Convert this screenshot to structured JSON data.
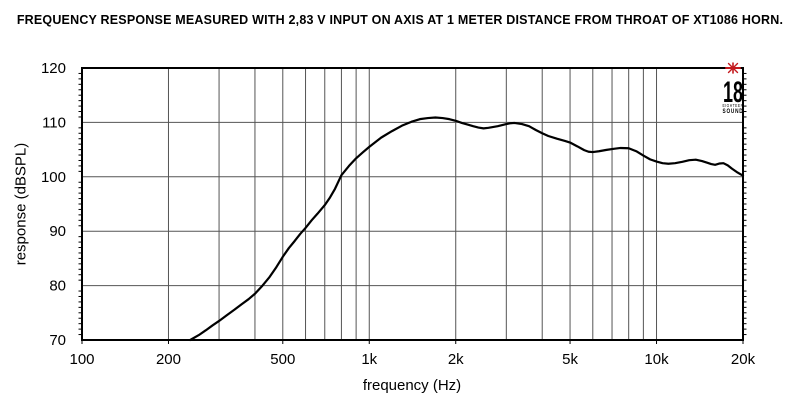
{
  "title": "FREQUENCY RESPONSE MEASURED WITH 2,83 V INPUT ON AXIS AT 1 METER DISTANCE FROM THROAT OF XT1086 HORN.",
  "logo": {
    "icon": "star-burst-icon",
    "star_color": "#c41a1f",
    "number": "18",
    "line1": "EIGHTEEN",
    "line2": "SOUND"
  },
  "colors": {
    "curve": "#000000",
    "grid": "#555555",
    "border": "#000000",
    "background": "#ffffff",
    "accent_red": "#c41a1f"
  },
  "chart_data": {
    "type": "line",
    "title": "FREQUENCY RESPONSE MEASURED WITH 2,83 V INPUT ON AXIS AT 1 METER DISTANCE FROM THROAT OF XT1086 HORN.",
    "xlabel": "frequency (Hz)",
    "ylabel": "response (dBSPL)",
    "x_scale": "log",
    "xlim": [
      100,
      20000
    ],
    "ylim": [
      70,
      120
    ],
    "grid": true,
    "legend": "none",
    "x_tick_labels": [
      {
        "label": "100",
        "value": 100
      },
      {
        "label": "200",
        "value": 200
      },
      {
        "label": "500",
        "value": 500
      },
      {
        "label": "1k",
        "value": 1000
      },
      {
        "label": "2k",
        "value": 2000
      },
      {
        "label": "5k",
        "value": 5000
      },
      {
        "label": "10k",
        "value": 10000
      },
      {
        "label": "20k",
        "value": 20000
      }
    ],
    "x_gridlines": [
      200,
      300,
      400,
      500,
      600,
      700,
      800,
      900,
      1000,
      2000,
      3000,
      4000,
      5000,
      6000,
      7000,
      8000,
      9000,
      10000
    ],
    "y_ticks": [
      70,
      80,
      90,
      100,
      110,
      120
    ],
    "y_minor_tick_step": 1,
    "series": [
      {
        "name": "on-axis response (dBSPL)",
        "color": "#000000",
        "points": [
          [
            238,
            70
          ],
          [
            255,
            70.9
          ],
          [
            270,
            71.8
          ],
          [
            285,
            72.7
          ],
          [
            300,
            73.5
          ],
          [
            320,
            74.6
          ],
          [
            340,
            75.6
          ],
          [
            360,
            76.6
          ],
          [
            380,
            77.5
          ],
          [
            400,
            78.5
          ],
          [
            425,
            80.0
          ],
          [
            450,
            81.6
          ],
          [
            475,
            83.4
          ],
          [
            500,
            85.3
          ],
          [
            525,
            86.9
          ],
          [
            550,
            88.2
          ],
          [
            575,
            89.5
          ],
          [
            600,
            90.6
          ],
          [
            630,
            92.0
          ],
          [
            660,
            93.2
          ],
          [
            700,
            94.8
          ],
          [
            730,
            96.2
          ],
          [
            760,
            97.8
          ],
          [
            800,
            100.3
          ],
          [
            850,
            102.0
          ],
          [
            900,
            103.4
          ],
          [
            950,
            104.5
          ],
          [
            1000,
            105.5
          ],
          [
            1100,
            107.2
          ],
          [
            1200,
            108.4
          ],
          [
            1300,
            109.4
          ],
          [
            1400,
            110.1
          ],
          [
            1500,
            110.6
          ],
          [
            1600,
            110.8
          ],
          [
            1700,
            110.9
          ],
          [
            1800,
            110.8
          ],
          [
            1900,
            110.6
          ],
          [
            2000,
            110.3
          ],
          [
            2100,
            109.9
          ],
          [
            2200,
            109.6
          ],
          [
            2300,
            109.3
          ],
          [
            2400,
            109.05
          ],
          [
            2500,
            108.9
          ],
          [
            2600,
            109.0
          ],
          [
            2800,
            109.3
          ],
          [
            3000,
            109.7
          ],
          [
            3100,
            109.85
          ],
          [
            3200,
            109.9
          ],
          [
            3400,
            109.7
          ],
          [
            3600,
            109.3
          ],
          [
            3800,
            108.6
          ],
          [
            4000,
            108.0
          ],
          [
            4200,
            107.5
          ],
          [
            4500,
            107.0
          ],
          [
            4800,
            106.6
          ],
          [
            5000,
            106.3
          ],
          [
            5300,
            105.6
          ],
          [
            5600,
            104.9
          ],
          [
            5800,
            104.6
          ],
          [
            6000,
            104.55
          ],
          [
            6300,
            104.7
          ],
          [
            6700,
            104.95
          ],
          [
            7100,
            105.15
          ],
          [
            7500,
            105.3
          ],
          [
            8000,
            105.25
          ],
          [
            8500,
            104.7
          ],
          [
            9000,
            103.9
          ],
          [
            9500,
            103.2
          ],
          [
            10000,
            102.8
          ],
          [
            10500,
            102.5
          ],
          [
            11000,
            102.4
          ],
          [
            11600,
            102.5
          ],
          [
            12300,
            102.75
          ],
          [
            13000,
            103.05
          ],
          [
            13700,
            103.15
          ],
          [
            14400,
            102.9
          ],
          [
            15000,
            102.6
          ],
          [
            15500,
            102.35
          ],
          [
            16000,
            102.2
          ],
          [
            16600,
            102.45
          ],
          [
            17100,
            102.5
          ],
          [
            17700,
            102.1
          ],
          [
            18300,
            101.5
          ],
          [
            19000,
            100.9
          ],
          [
            20000,
            100.2
          ]
        ]
      }
    ]
  }
}
